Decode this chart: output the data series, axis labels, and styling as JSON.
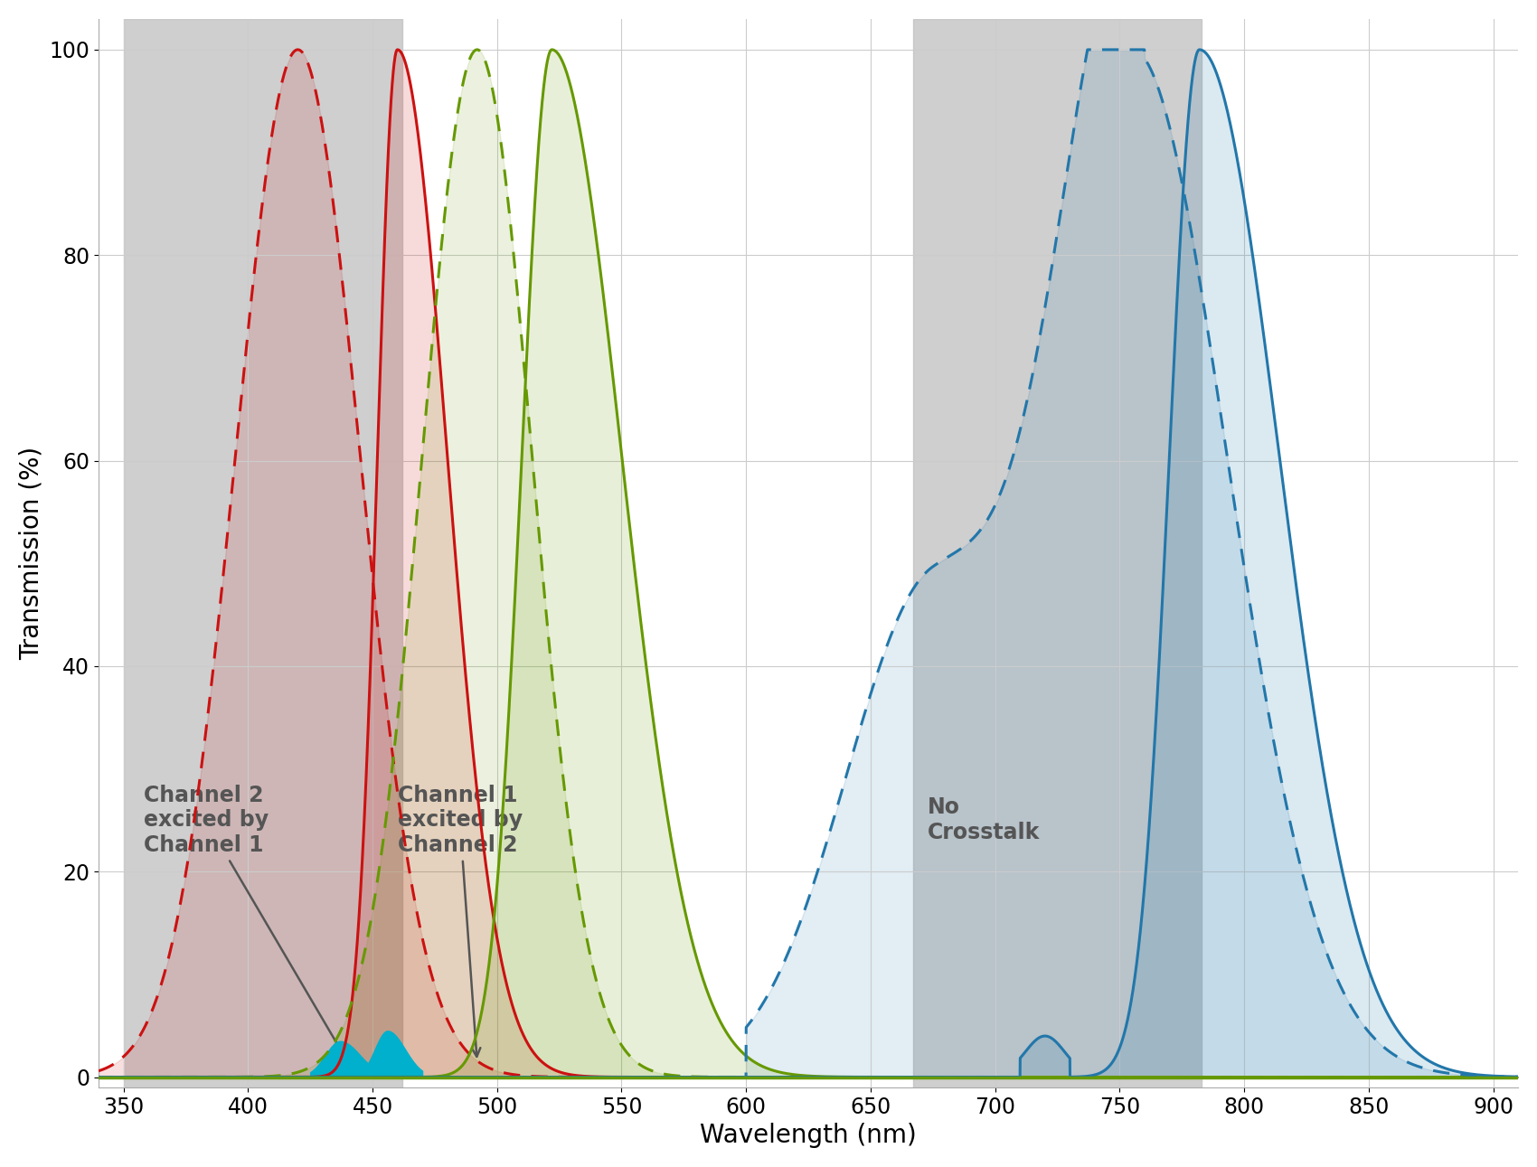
{
  "xlim": [
    340,
    910
  ],
  "ylim": [
    -1,
    103
  ],
  "xlabel": "Wavelength (nm)",
  "ylabel": "Transmission (%)",
  "background_color": "#ffffff",
  "grid_color": "#cccccc",
  "led1_band": [
    350,
    462
  ],
  "led2_band": [
    667,
    783
  ],
  "led_band_color": "#c0c0c0",
  "led_band_alpha": 0.75,
  "red_color": "#cc1111",
  "green_color": "#669900",
  "blue_color": "#2277aa",
  "cyan_color": "#00b0cc",
  "axis_fontsize": 20,
  "tick_fontsize": 17,
  "annotation_fontsize": 16
}
